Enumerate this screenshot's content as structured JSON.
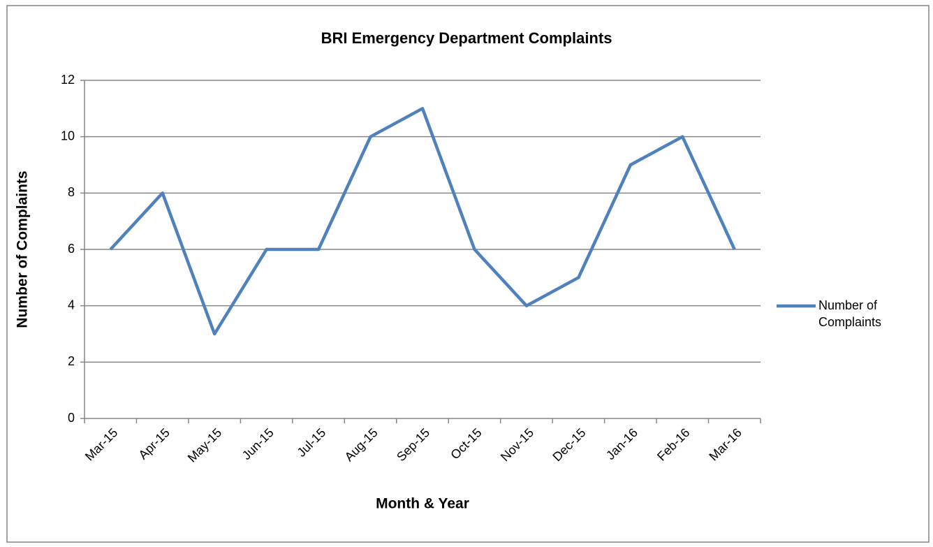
{
  "chart_data": {
    "type": "line",
    "title": "BRI Emergency Department Complaints",
    "x_label": "Month & Year",
    "y_label": "Number of Complaints",
    "categories": [
      "Mar-15",
      "Apr-15",
      "May-15",
      "Jun-15",
      "Jul-15",
      "Aug-15",
      "Sep-15",
      "Oct-15",
      "Nov-15",
      "Dec-15",
      "Jan-16",
      "Feb-16",
      "Mar-16"
    ],
    "series": [
      {
        "name": "Number of Complaints",
        "color": "#4f81bd",
        "values": [
          6,
          8,
          3,
          6,
          6,
          10,
          11,
          6,
          4,
          5,
          9,
          10,
          6
        ]
      }
    ],
    "ylim": [
      0,
      12
    ],
    "yticks": [
      0,
      2,
      4,
      6,
      8,
      10,
      12
    ],
    "grid": true,
    "legend": "right"
  }
}
